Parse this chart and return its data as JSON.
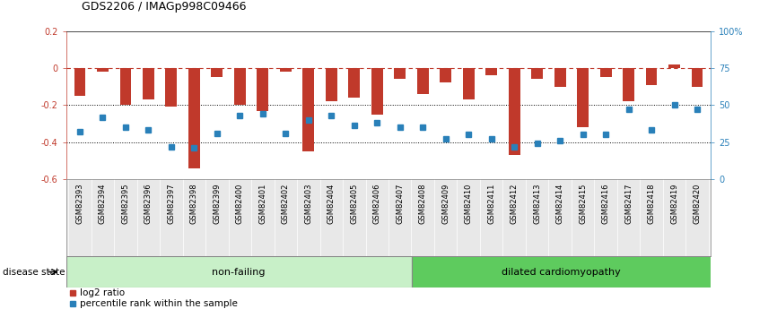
{
  "title": "GDS2206 / IMAGp998C09466",
  "samples": [
    "GSM82393",
    "GSM82394",
    "GSM82395",
    "GSM82396",
    "GSM82397",
    "GSM82398",
    "GSM82399",
    "GSM82400",
    "GSM82401",
    "GSM82402",
    "GSM82403",
    "GSM82404",
    "GSM82405",
    "GSM82406",
    "GSM82407",
    "GSM82408",
    "GSM82409",
    "GSM82410",
    "GSM82411",
    "GSM82412",
    "GSM82413",
    "GSM82414",
    "GSM82415",
    "GSM82416",
    "GSM82417",
    "GSM82418",
    "GSM82419",
    "GSM82420"
  ],
  "log2_ratio": [
    -0.15,
    -0.02,
    -0.2,
    -0.17,
    -0.21,
    -0.54,
    -0.05,
    -0.2,
    -0.23,
    -0.02,
    -0.45,
    -0.18,
    -0.16,
    -0.25,
    -0.06,
    -0.14,
    -0.08,
    -0.17,
    -0.04,
    -0.47,
    -0.06,
    -0.1,
    -0.32,
    -0.05,
    -0.18,
    -0.09,
    0.02,
    -0.1
  ],
  "percentile_rank": [
    32,
    42,
    35,
    33,
    22,
    21,
    31,
    43,
    44,
    31,
    40,
    43,
    36,
    38,
    35,
    35,
    27,
    30,
    27,
    22,
    24,
    26,
    30,
    30,
    47,
    33,
    50,
    47
  ],
  "non_failing_count": 15,
  "dilated_count": 13,
  "bar_color": "#c0392b",
  "dot_color": "#2980b9",
  "nf_color": "#c8f0c8",
  "dc_color": "#5ecb5e",
  "ylim_left": [
    -0.6,
    0.2
  ],
  "ylim_right": [
    0,
    100
  ],
  "hline_dotted": [
    -0.2,
    -0.4
  ],
  "right_ticks": [
    0,
    25,
    50,
    75,
    100
  ],
  "right_tick_labels": [
    "0",
    "25",
    "50",
    "75",
    "100%"
  ]
}
